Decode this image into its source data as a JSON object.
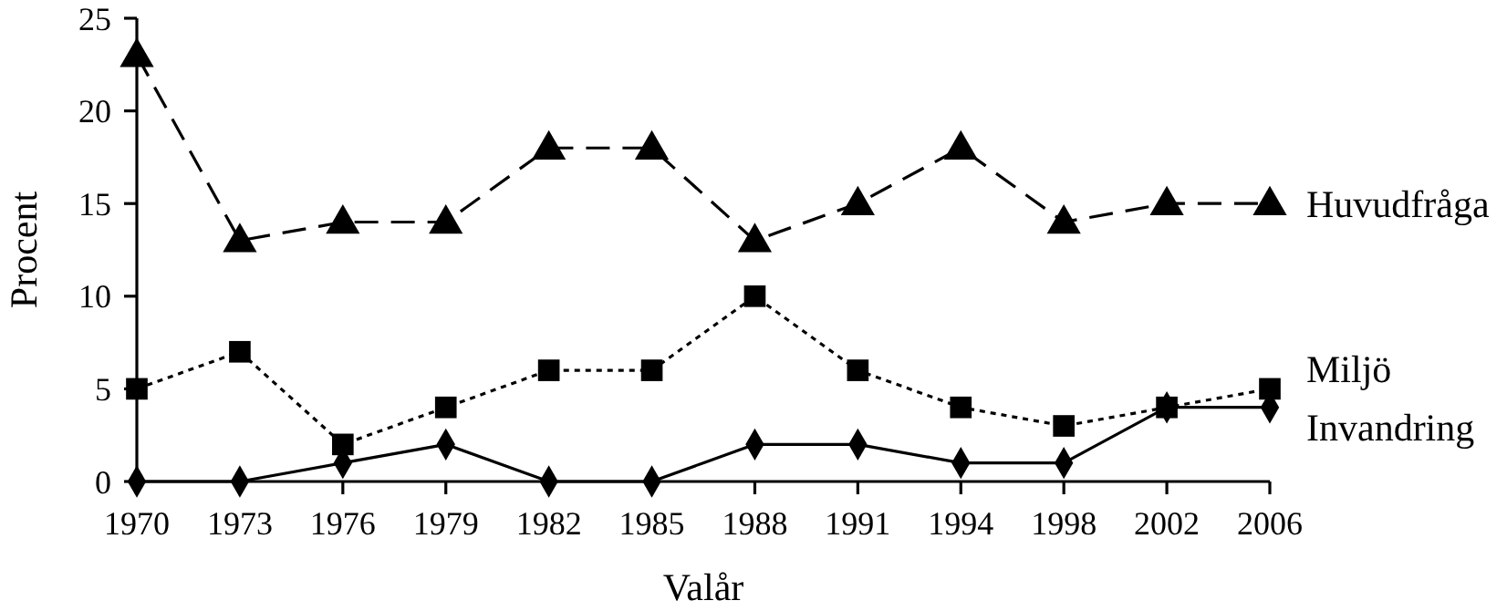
{
  "chart_data": {
    "type": "line",
    "xlabel": "Valår",
    "ylabel": "Procent",
    "categories": [
      "1970",
      "1973",
      "1976",
      "1979",
      "1982",
      "1985",
      "1988",
      "1991",
      "1994",
      "1998",
      "2002",
      "2006"
    ],
    "ylim": [
      0,
      25
    ],
    "yticks": [
      0,
      5,
      10,
      15,
      20,
      25
    ],
    "series": [
      {
        "name": "Huvudfråga",
        "color": "#000000",
        "marker": "triangle",
        "line_style": "dashed",
        "values": [
          23,
          13,
          14,
          14,
          18,
          18,
          13,
          15,
          18,
          14,
          15,
          15
        ]
      },
      {
        "name": "Miljö",
        "color": "#000000",
        "marker": "square",
        "line_style": "dotted",
        "values": [
          5,
          7,
          2,
          4,
          6,
          6,
          10,
          6,
          4,
          3,
          4,
          5
        ]
      },
      {
        "name": "Invandring",
        "color": "#000000",
        "marker": "diamond",
        "line_style": "solid",
        "values": [
          0,
          0,
          1,
          2,
          0,
          0,
          2,
          2,
          1,
          1,
          4,
          4
        ]
      }
    ]
  }
}
